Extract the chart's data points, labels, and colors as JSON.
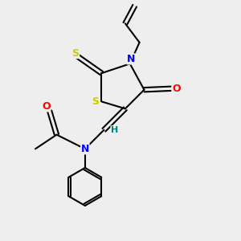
{
  "bg_color": "#eeeeee",
  "bond_color": "#000000",
  "atom_colors": {
    "S": "#cccc00",
    "N": "#0000ff",
    "O": "#ff0000",
    "H": "#008080",
    "C": "#000000"
  },
  "font_size": 9,
  "figsize": [
    3.0,
    3.0
  ],
  "dpi": 100
}
